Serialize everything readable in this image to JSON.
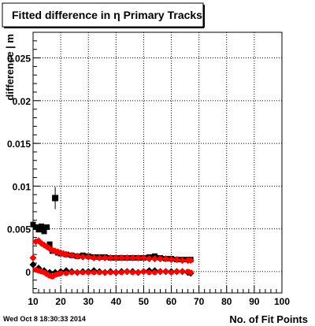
{
  "title": "Fitted difference in  η Primary Tracks",
  "footer": "Wed Oct  8 18:30:33 2014",
  "colors": {
    "series1": "#000000",
    "series2": "#ff0000",
    "grid": "#000000"
  },
  "chart_data": {
    "type": "scatter",
    "title": "Fitted difference in  η Primary Tracks",
    "xlabel": "No. of Fit Points",
    "ylabel": "difference | m",
    "xlim": [
      10,
      100
    ],
    "ylim": [
      -0.0025,
      0.028
    ],
    "xticks": [
      10,
      20,
      30,
      40,
      50,
      60,
      70,
      80,
      90,
      100
    ],
    "yticks": [
      0,
      0.005,
      0.01,
      0.015,
      0.02,
      0.025
    ],
    "ytick_labels": [
      "0",
      "0.005",
      "0.01",
      "0.015",
      "0.02",
      "0.025"
    ],
    "grid": true,
    "series": [
      {
        "color": "#000000",
        "marker": "square",
        "points": [
          [
            10,
            0.0055
          ],
          [
            11,
            0.0052
          ],
          [
            12,
            0.0049
          ],
          [
            13,
            0.0053
          ],
          [
            14,
            0.0047
          ],
          [
            15,
            0.0052
          ],
          [
            16,
            0.0032
          ],
          [
            17,
            0.0024
          ],
          [
            18,
            0.0086
          ],
          [
            19,
            0.0022
          ],
          [
            20,
            0.0021
          ],
          [
            22,
            0.002
          ],
          [
            24,
            0.0019
          ],
          [
            26,
            0.0018
          ],
          [
            28,
            0.0019
          ],
          [
            30,
            0.0018
          ],
          [
            32,
            0.0017
          ],
          [
            34,
            0.0017
          ],
          [
            36,
            0.0017
          ],
          [
            38,
            0.0016
          ],
          [
            40,
            0.0016
          ],
          [
            42,
            0.0016
          ],
          [
            44,
            0.0016
          ],
          [
            46,
            0.0016
          ],
          [
            48,
            0.0016
          ],
          [
            50,
            0.0016
          ],
          [
            52,
            0.0017
          ],
          [
            54,
            0.0018
          ],
          [
            56,
            0.0016
          ],
          [
            58,
            0.0015
          ],
          [
            60,
            0.0015
          ],
          [
            62,
            0.0014
          ],
          [
            64,
            0.0014
          ],
          [
            66,
            0.0014
          ],
          [
            67,
            0.0014
          ]
        ]
      },
      {
        "color": "#000000",
        "marker": "diamond",
        "points": [
          [
            10,
            0.0008
          ],
          [
            12,
            0.0004
          ],
          [
            14,
            0.0001
          ],
          [
            16,
            -0.0001
          ],
          [
            18,
            -0.0001
          ],
          [
            20,
            0.0
          ],
          [
            22,
            0.0001
          ],
          [
            24,
            0.0
          ],
          [
            26,
            -0.0001
          ],
          [
            28,
            0.0
          ],
          [
            30,
            0.0
          ],
          [
            32,
            0.0001
          ],
          [
            34,
            0.0
          ],
          [
            36,
            -0.0001
          ],
          [
            38,
            0.0
          ],
          [
            40,
            -0.0001
          ],
          [
            42,
            0.0
          ],
          [
            44,
            0.0
          ],
          [
            46,
            0.0
          ],
          [
            48,
            -0.0001
          ],
          [
            50,
            0.0
          ],
          [
            52,
            0.0001
          ],
          [
            54,
            0.0001
          ],
          [
            56,
            0.0
          ],
          [
            58,
            0.0
          ],
          [
            60,
            0.0
          ],
          [
            62,
            0.0
          ],
          [
            64,
            0.0
          ],
          [
            66,
            -0.0001
          ],
          [
            67,
            -0.0002
          ]
        ]
      },
      {
        "color": "#ff0000",
        "marker": "diamond",
        "points": [
          [
            10,
            0.0016
          ],
          [
            11,
            0.0035
          ],
          [
            12,
            0.0036
          ],
          [
            13,
            0.0033
          ],
          [
            14,
            0.0031
          ],
          [
            15,
            0.0029
          ],
          [
            16,
            0.0027
          ],
          [
            17,
            0.0025
          ],
          [
            18,
            0.0024
          ],
          [
            19,
            0.0023
          ],
          [
            20,
            0.0022
          ],
          [
            21,
            0.0021
          ],
          [
            22,
            0.002
          ],
          [
            24,
            0.0019
          ],
          [
            26,
            0.0018
          ],
          [
            28,
            0.0017
          ],
          [
            30,
            0.0017
          ],
          [
            32,
            0.0016
          ],
          [
            34,
            0.0016
          ],
          [
            36,
            0.0016
          ],
          [
            38,
            0.0016
          ],
          [
            40,
            0.0016
          ],
          [
            42,
            0.0016
          ],
          [
            44,
            0.0016
          ],
          [
            46,
            0.0016
          ],
          [
            48,
            0.0016
          ],
          [
            50,
            0.0016
          ],
          [
            52,
            0.0015
          ],
          [
            54,
            0.0015
          ],
          [
            56,
            0.0015
          ],
          [
            58,
            0.0015
          ],
          [
            60,
            0.0014
          ],
          [
            62,
            0.0014
          ],
          [
            64,
            0.0013
          ],
          [
            66,
            0.0013
          ],
          [
            67,
            0.0013
          ]
        ]
      },
      {
        "color": "#ff0000",
        "marker": "circle",
        "points": [
          [
            11,
            0.0002
          ],
          [
            12,
            0.0001
          ],
          [
            13,
            0.0
          ],
          [
            14,
            -0.0001
          ],
          [
            15,
            -0.0003
          ],
          [
            16,
            -0.0005
          ],
          [
            17,
            -0.0006
          ],
          [
            18,
            -0.0004
          ],
          [
            19,
            -0.0003
          ],
          [
            20,
            -0.0002
          ],
          [
            22,
            -0.0002
          ],
          [
            24,
            -0.0001
          ],
          [
            26,
            -0.0001
          ],
          [
            28,
            -0.0001
          ],
          [
            30,
            -0.0001
          ],
          [
            32,
            -0.0001
          ],
          [
            34,
            -0.0001
          ],
          [
            36,
            -0.0001
          ],
          [
            38,
            -0.0001
          ],
          [
            40,
            -0.0001
          ],
          [
            42,
            -0.0001
          ],
          [
            44,
            0.0
          ],
          [
            46,
            -0.0001
          ],
          [
            48,
            -0.0001
          ],
          [
            50,
            0.0
          ],
          [
            52,
            -0.0001
          ],
          [
            54,
            -0.0001
          ],
          [
            56,
            0.0
          ],
          [
            58,
            0.0
          ],
          [
            60,
            -0.0001
          ],
          [
            62,
            0.0
          ],
          [
            64,
            0.0
          ],
          [
            66,
            0.0
          ],
          [
            67,
            -0.0001
          ]
        ]
      },
      {
        "color": "#000000",
        "marker": "errorbar",
        "points": [
          [
            18,
            0.0086,
            0.0013
          ]
        ]
      }
    ]
  }
}
